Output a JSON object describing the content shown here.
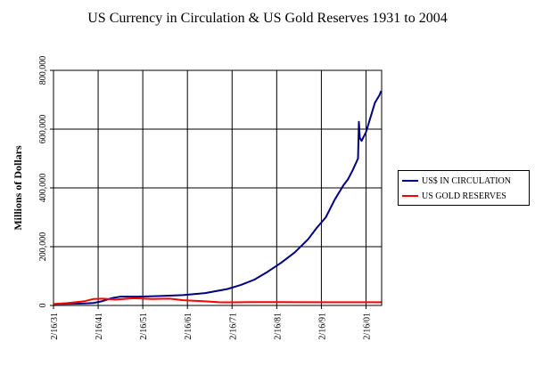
{
  "chart_data": {
    "type": "line",
    "title": "US Currency in Circulation & US Gold Reserves 1931 to 2004",
    "xlabel": "",
    "ylabel": "Millions of Dollars",
    "x_ticks": [
      "2/16/31",
      "2/16/41",
      "2/16/51",
      "2/16/61",
      "2/16/71",
      "2/16/81",
      "2/16/91",
      "2/16/01"
    ],
    "y_ticks": [
      "0",
      "200,000",
      "400,000",
      "600,000",
      "800,000"
    ],
    "xlim": [
      1931,
      2004.5
    ],
    "ylim": [
      0,
      800000
    ],
    "grid": true,
    "legend_position": "right",
    "series": [
      {
        "name": "US$ IN CIRCULATION",
        "color": "#000080",
        "x": [
          1931,
          1935,
          1938,
          1940,
          1942,
          1944,
          1946,
          1950,
          1955,
          1960,
          1965,
          1970,
          1973,
          1976,
          1979,
          1982,
          1985,
          1988,
          1990,
          1992,
          1994,
          1996,
          1997,
          1998,
          1999.2,
          1999.4,
          1999.6,
          2000,
          2001,
          2002,
          2003,
          2004,
          2004.4
        ],
        "values": [
          4800,
          5800,
          6800,
          8400,
          15000,
          25000,
          30000,
          30000,
          32000,
          35000,
          42000,
          56000,
          70000,
          88000,
          115000,
          145000,
          180000,
          225000,
          265000,
          300000,
          360000,
          410000,
          430000,
          460000,
          500000,
          625000,
          570000,
          560000,
          590000,
          640000,
          690000,
          715000,
          730000
        ]
      },
      {
        "name": "US GOLD RESERVES",
        "color": "#ff0000",
        "x": [
          1931,
          1934,
          1936,
          1938,
          1940,
          1942,
          1945,
          1949,
          1953,
          1957,
          1960,
          1965,
          1968,
          1971,
          1975,
          1980,
          1990,
          2000,
          2004.4
        ],
        "values": [
          4500,
          8000,
          11000,
          14500,
          22000,
          23000,
          20000,
          24500,
          22000,
          23000,
          18000,
          14000,
          11000,
          10500,
          11500,
          11500,
          11000,
          11000,
          11000
        ]
      }
    ]
  }
}
